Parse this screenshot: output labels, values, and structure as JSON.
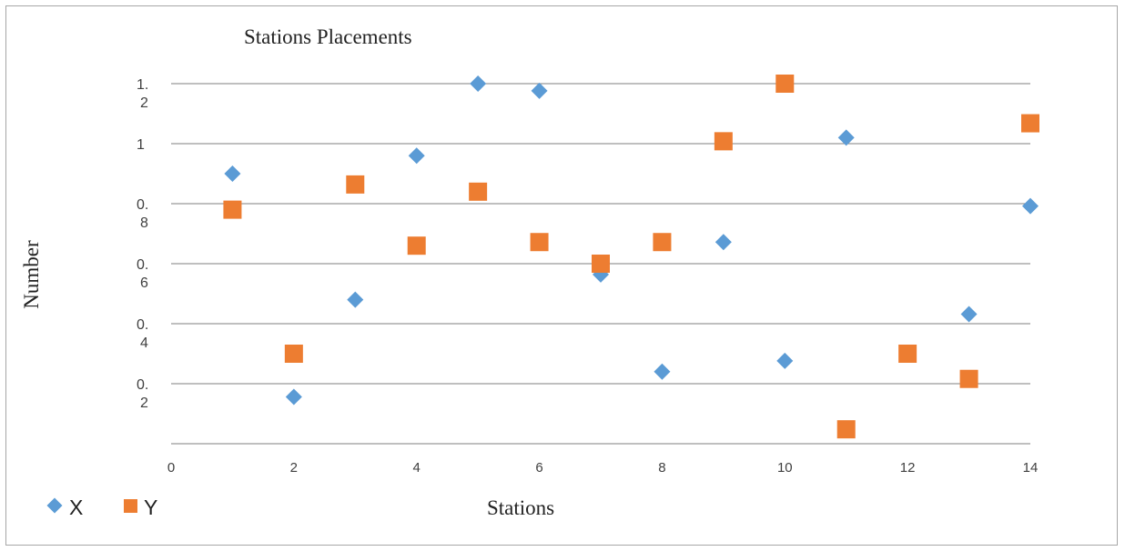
{
  "chart_data": {
    "type": "scatter",
    "title": "Stations Placements",
    "xlabel": "Stations",
    "ylabel": "Number",
    "xlim": [
      0,
      14
    ],
    "ylim": [
      0.2,
      1.2
    ],
    "x_ticks": [
      "0",
      "2",
      "4",
      "6",
      "8",
      "10",
      "12",
      "14"
    ],
    "y_ticks": [
      {
        "line1": "1.",
        "line2": "2"
      },
      {
        "line1": "1",
        "line2": ""
      },
      {
        "line1": "0.",
        "line2": "8"
      },
      {
        "line1": "0.",
        "line2": "6"
      },
      {
        "line1": "0.",
        "line2": "4"
      },
      {
        "line1": "0.",
        "line2": "2"
      }
    ],
    "grid": true,
    "legend_position": "bottom-left",
    "series": [
      {
        "name": "X",
        "marker": "diamond",
        "color": "#5b9bd5",
        "points": [
          [
            1,
            0.95
          ],
          [
            2,
            0.33
          ],
          [
            3,
            0.6
          ],
          [
            4,
            1.0
          ],
          [
            5,
            1.2
          ],
          [
            6,
            1.18
          ],
          [
            7,
            0.67
          ],
          [
            8,
            0.4
          ],
          [
            9,
            0.76
          ],
          [
            10,
            0.43
          ],
          [
            11,
            1.05
          ],
          [
            12,
            null
          ],
          [
            13,
            0.56
          ],
          [
            14,
            0.86
          ]
        ]
      },
      {
        "name": "Y",
        "marker": "square",
        "color": "#ed7d31",
        "points": [
          [
            1,
            0.85
          ],
          [
            2,
            0.45
          ],
          [
            3,
            0.92
          ],
          [
            4,
            0.75
          ],
          [
            5,
            0.9
          ],
          [
            6,
            0.76
          ],
          [
            7,
            0.7
          ],
          [
            8,
            0.76
          ],
          [
            9,
            1.04
          ],
          [
            10,
            1.2
          ],
          [
            11,
            0.24
          ],
          [
            12,
            0.45
          ],
          [
            13,
            0.38
          ],
          [
            14,
            1.09
          ]
        ]
      }
    ]
  }
}
